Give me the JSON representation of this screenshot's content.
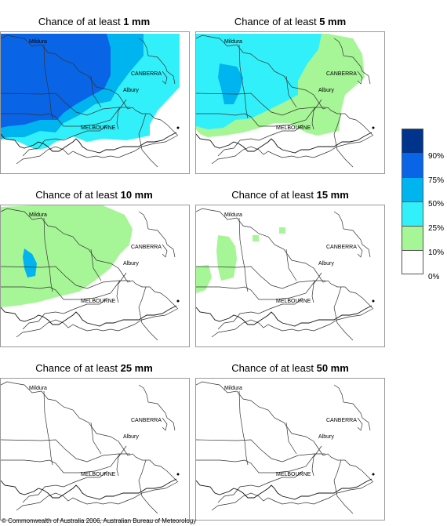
{
  "panels": [
    {
      "prefix": "Chance of at least ",
      "amount": "1 mm",
      "level": 0
    },
    {
      "prefix": "Chance of at least ",
      "amount": "5 mm",
      "level": 1
    },
    {
      "prefix": "Chance of at least ",
      "amount": "10 mm",
      "level": 2
    },
    {
      "prefix": "Chance of at least ",
      "amount": "15 mm",
      "level": 3
    },
    {
      "prefix": "Chance of at least ",
      "amount": "25 mm",
      "level": 4
    },
    {
      "prefix": "Chance of at least ",
      "amount": "50 mm",
      "level": 5
    }
  ],
  "places": {
    "mildura": "Mildura",
    "canberra": "CANBERRA",
    "albury": "Albury",
    "melbourne": "MELBOURNE"
  },
  "legend": {
    "colors": [
      "#00338c",
      "#0a64e6",
      "#00b4f0",
      "#32f0fa",
      "#a6f596",
      "#ffffff"
    ],
    "ticks": [
      "90%",
      "75%",
      "50%",
      "25%",
      "10%",
      "0%"
    ]
  },
  "copyright": "© Commonwealth of Australia 2006, Australian Bureau of Meteorology"
}
